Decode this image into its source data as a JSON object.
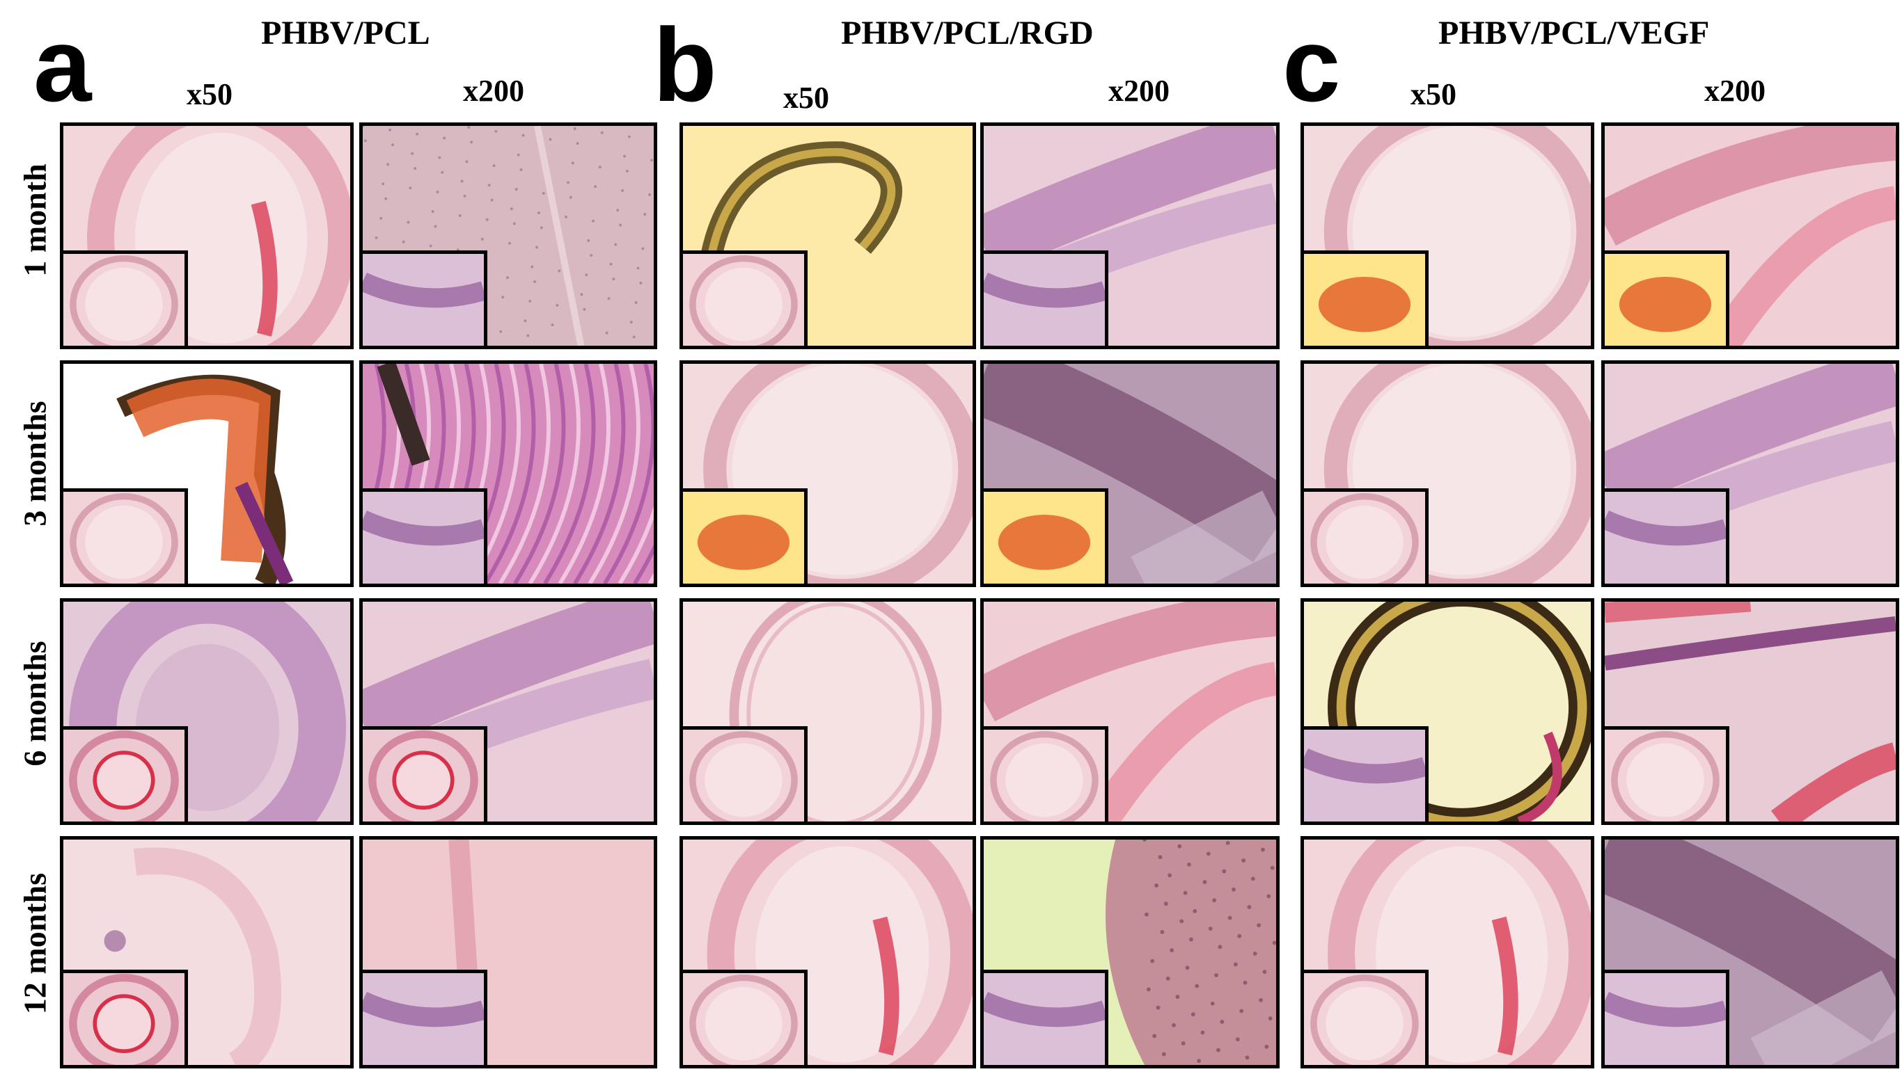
{
  "panels": [
    {
      "letter": "a",
      "title": "PHBV/PCL",
      "mag_low": "x50",
      "mag_high": "x200"
    },
    {
      "letter": "b",
      "title": "PHBV/PCL/RGD",
      "mag_low": "x50",
      "mag_high": "x200"
    },
    {
      "letter": "c",
      "title": "PHBV/PCL/VEGF",
      "mag_low": "x50",
      "mag_high": "x200"
    }
  ],
  "rows": [
    "1 month",
    "3 months",
    "6 months",
    "12 months"
  ],
  "colors": {
    "he_bg": "#f2d6da",
    "he_tissue": "#e6a9b8",
    "he_dark": "#c57aa3",
    "blood": "#d9304a",
    "purple_bg": "#b994bf",
    "vangieson_bg": "#fde9a8",
    "vangieson_tissue": "#e4642e",
    "black": "#000000"
  },
  "images": [
    {
      "id": "a-1m-x50",
      "style": "he-ring-blood",
      "inset": "he-ring"
    },
    {
      "id": "a-1m-x200",
      "style": "he-dots",
      "inset": "he-purple"
    },
    {
      "id": "b-1m-x50",
      "style": "vg-ring",
      "inset": "he-ring"
    },
    {
      "id": "b-1m-x200",
      "style": "he-purple-band",
      "inset": "he-purple"
    },
    {
      "id": "c-1m-x50",
      "style": "he-ring-large",
      "inset": "vg-blob"
    },
    {
      "id": "c-1m-x200",
      "style": "he-red-band",
      "inset": "vg-blob"
    },
    {
      "id": "a-3m-x50",
      "style": "vg-white",
      "inset": "he-ring"
    },
    {
      "id": "a-3m-x200",
      "style": "he-fibers",
      "inset": "he-purple"
    },
    {
      "id": "b-3m-x50",
      "style": "he-ring-large",
      "inset": "vg-blob"
    },
    {
      "id": "b-3m-x200",
      "style": "he-dark-band",
      "inset": "vg-blob"
    },
    {
      "id": "c-3m-x50",
      "style": "he-ring-large",
      "inset": "he-ring"
    },
    {
      "id": "c-3m-x200",
      "style": "he-purple-band",
      "inset": "he-purple"
    },
    {
      "id": "a-6m-x50",
      "style": "he-thick-ring",
      "inset": "he-ring-red"
    },
    {
      "id": "a-6m-x200",
      "style": "he-purple-band",
      "inset": "he-ring-red"
    },
    {
      "id": "b-6m-x50",
      "style": "he-thin-ring",
      "inset": "he-ring"
    },
    {
      "id": "b-6m-x200",
      "style": "he-red-band",
      "inset": "he-ring"
    },
    {
      "id": "c-6m-x50",
      "style": "vg-ring-large",
      "inset": "he-purple"
    },
    {
      "id": "c-6m-x200",
      "style": "he-blood-band",
      "inset": "he-ring"
    },
    {
      "id": "a-12m-x50",
      "style": "he-pale",
      "inset": "he-ring-red"
    },
    {
      "id": "a-12m-x200",
      "style": "he-pale-band",
      "inset": "he-purple"
    },
    {
      "id": "b-12m-x50",
      "style": "he-ring-blood",
      "inset": "he-ring"
    },
    {
      "id": "b-12m-x200",
      "style": "vg-fibers",
      "inset": "he-purple"
    },
    {
      "id": "c-12m-x50",
      "style": "he-ring-blood",
      "inset": "he-ring"
    },
    {
      "id": "c-12m-x200",
      "style": "he-dark-band",
      "inset": "he-purple"
    }
  ]
}
